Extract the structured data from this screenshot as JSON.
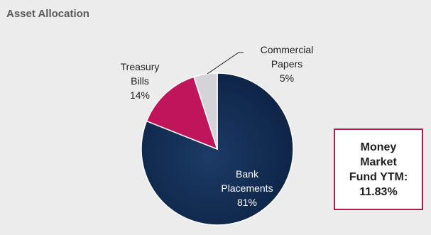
{
  "header": {
    "title": "Asset Allocation"
  },
  "callout": {
    "lines": [
      "Money",
      "Market",
      "Fund YTM:",
      "11.83%"
    ]
  },
  "colors": {
    "navy": "#17345a",
    "crimson": "#c0155a",
    "lightgray": "#d4d4d8",
    "accent_border": "#b01a4a"
  },
  "chart_data": {
    "type": "pie",
    "title": "Asset Allocation",
    "slices": [
      {
        "label": "Bank Placements",
        "value": 81,
        "label_lines": [
          "Bank",
          "Placements",
          "81%"
        ],
        "color": "#17345a"
      },
      {
        "label": "Treasury Bills",
        "value": 14,
        "label_lines": [
          "Treasury",
          "Bills",
          "14%"
        ],
        "color": "#c0155a"
      },
      {
        "label": "Commercial Papers",
        "value": 5,
        "label_lines": [
          "Commercial",
          "Papers",
          "5%"
        ],
        "color": "#d4d4d8"
      }
    ]
  }
}
